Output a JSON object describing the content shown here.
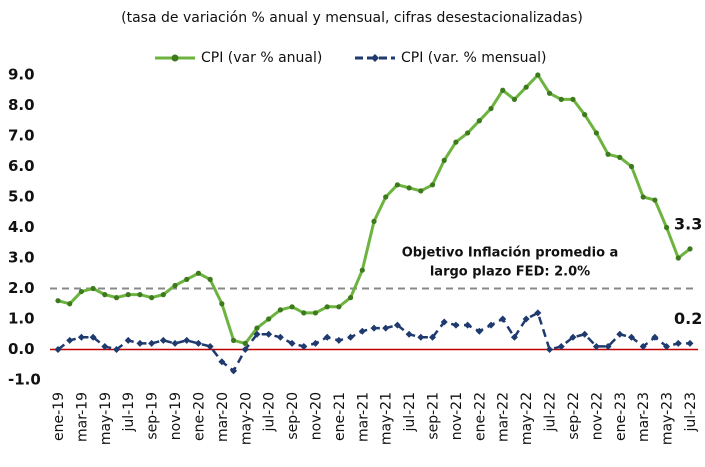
{
  "chart_data": {
    "type": "line",
    "subtitle": "(tasa de variación % anual y mensual, cifras desestacionalizadas)",
    "categories": [
      "ene-19",
      null,
      "mar-19",
      null,
      "may-19",
      null,
      "jul-19",
      null,
      "sep-19",
      null,
      "nov-19",
      null,
      "ene-20",
      null,
      "mar-20",
      null,
      "may-20",
      null,
      "jul-20",
      null,
      "sep-20",
      null,
      "nov-20",
      null,
      "ene-21",
      null,
      "mar-21",
      null,
      "may-21",
      null,
      "jul-21",
      null,
      "sep-21",
      null,
      "nov-21",
      null,
      "ene-22",
      null,
      "mar-22",
      null,
      "may-22",
      null,
      "jul-22",
      null,
      "sep-22",
      null,
      "nov-22",
      null,
      "ene-23",
      null,
      "mar-23",
      null,
      "may-23",
      null,
      "jul-23"
    ],
    "series": [
      {
        "name": "CPI (var % anual)",
        "color": "#6db33f",
        "end_label": "3.3",
        "values": [
          1.6,
          1.5,
          1.9,
          2.0,
          1.8,
          1.7,
          1.8,
          1.8,
          1.7,
          1.8,
          2.1,
          2.3,
          2.5,
          2.3,
          1.5,
          0.3,
          0.2,
          0.7,
          1.0,
          1.3,
          1.4,
          1.2,
          1.2,
          1.4,
          1.4,
          1.7,
          2.6,
          4.2,
          5.0,
          5.4,
          5.3,
          5.2,
          5.4,
          6.2,
          6.8,
          7.1,
          7.5,
          7.9,
          8.5,
          8.2,
          8.6,
          9.0,
          8.4,
          8.2,
          8.2,
          7.7,
          7.1,
          6.4,
          6.3,
          6.0,
          5.0,
          4.9,
          4.0,
          3.0,
          3.3
        ]
      },
      {
        "name": "CPI (var. % mensual)",
        "color": "#1f3a6e",
        "end_label": "0.2",
        "values": [
          0.0,
          0.3,
          0.4,
          0.4,
          0.1,
          0.0,
          0.3,
          0.2,
          0.2,
          0.3,
          0.2,
          0.3,
          0.2,
          0.1,
          -0.4,
          -0.7,
          0.0,
          0.5,
          0.5,
          0.4,
          0.2,
          0.1,
          0.2,
          0.4,
          0.3,
          0.4,
          0.6,
          0.7,
          0.7,
          0.8,
          0.5,
          0.4,
          0.4,
          0.9,
          0.8,
          0.8,
          0.6,
          0.8,
          1.0,
          0.4,
          1.0,
          1.2,
          0.0,
          0.1,
          0.4,
          0.5,
          0.1,
          0.1,
          0.5,
          0.4,
          0.1,
          0.4,
          0.1,
          0.2,
          0.2
        ]
      }
    ],
    "ylim": [
      -1,
      9
    ],
    "yticks": [
      {
        "value": -1,
        "label": "-1.0"
      },
      {
        "value": 0,
        "label": "0.0"
      },
      {
        "value": 1,
        "label": "1.0"
      },
      {
        "value": 2,
        "label": "2.0"
      },
      {
        "value": 3,
        "label": "3.0"
      },
      {
        "value": 4,
        "label": "4.0"
      },
      {
        "value": 5,
        "label": "5.0"
      },
      {
        "value": 6,
        "label": "6.0"
      },
      {
        "value": 7,
        "label": "7.0"
      },
      {
        "value": 8,
        "label": "8.0"
      },
      {
        "value": 9,
        "label": "9.0"
      }
    ],
    "reference_line": 2.0,
    "annotations": [
      "Objetivo Inflación promedio a",
      "largo plazo FED: 2.0%"
    ]
  }
}
